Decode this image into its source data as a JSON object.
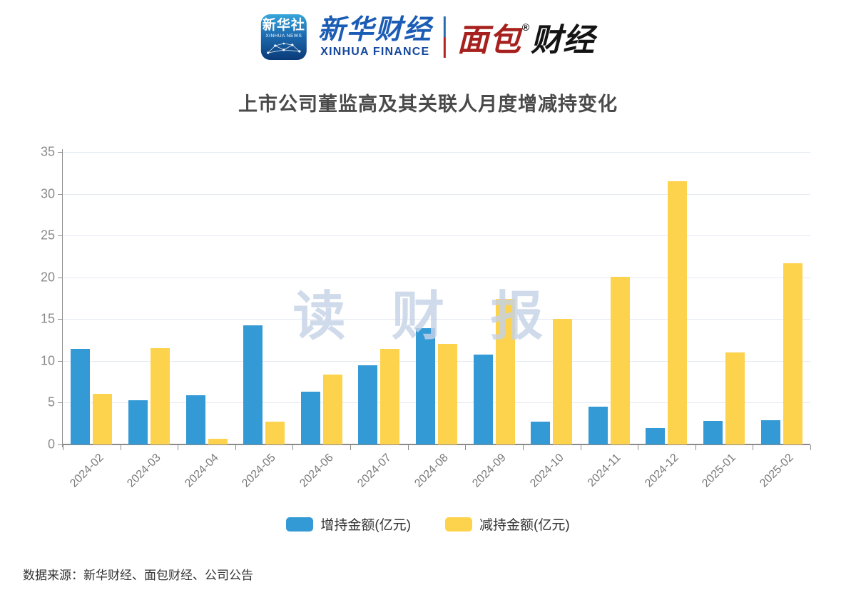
{
  "header": {
    "xinhua_news_icon": {
      "line1": "新华社",
      "line2": "XINHUA NEWS"
    },
    "xinhua_finance": {
      "cn": "新华财经",
      "en": "XINHUA FINANCE"
    },
    "bread_finance": {
      "part1": "面包",
      "reg": "®",
      "part2": "财经"
    }
  },
  "watermark": "读 财 报",
  "footer": {
    "source": "数据来源：新华财经、面包财经、公司公告"
  },
  "colors": {
    "increase_bar": "#349ad5",
    "decrease_bar": "#fdd34e",
    "frame_blue": "#1b4787",
    "frame_red": "#b3202a",
    "gridline": "#e4e9f3",
    "axis": "#8b8b8b"
  },
  "chart_data": {
    "type": "bar",
    "title": "上市公司董监高及其关联人月度增减持变化",
    "categories": [
      "2024-02",
      "2024-03",
      "2024-04",
      "2024-05",
      "2024-06",
      "2024-07",
      "2024-08",
      "2024-09",
      "2024-10",
      "2024-11",
      "2024-12",
      "2025-01",
      "2025-02"
    ],
    "series": [
      {
        "name": "增持金额(亿元)",
        "color": "#349ad5",
        "values": [
          11.4,
          5.3,
          5.9,
          14.3,
          6.3,
          9.5,
          13.9,
          10.8,
          2.7,
          4.5,
          2.0,
          2.8,
          2.9
        ]
      },
      {
        "name": "减持金额(亿元)",
        "color": "#fdd34e",
        "values": [
          6.1,
          11.5,
          0.7,
          2.7,
          8.4,
          11.4,
          12.0,
          17.4,
          15.0,
          20.1,
          31.5,
          11.0,
          21.7
        ]
      }
    ],
    "xlabel": "",
    "ylabel": "",
    "ylim": [
      0,
      35
    ],
    "yticks": [
      0,
      5,
      10,
      15,
      20,
      25,
      30,
      35
    ],
    "grid": true,
    "legend_position": "bottom"
  }
}
